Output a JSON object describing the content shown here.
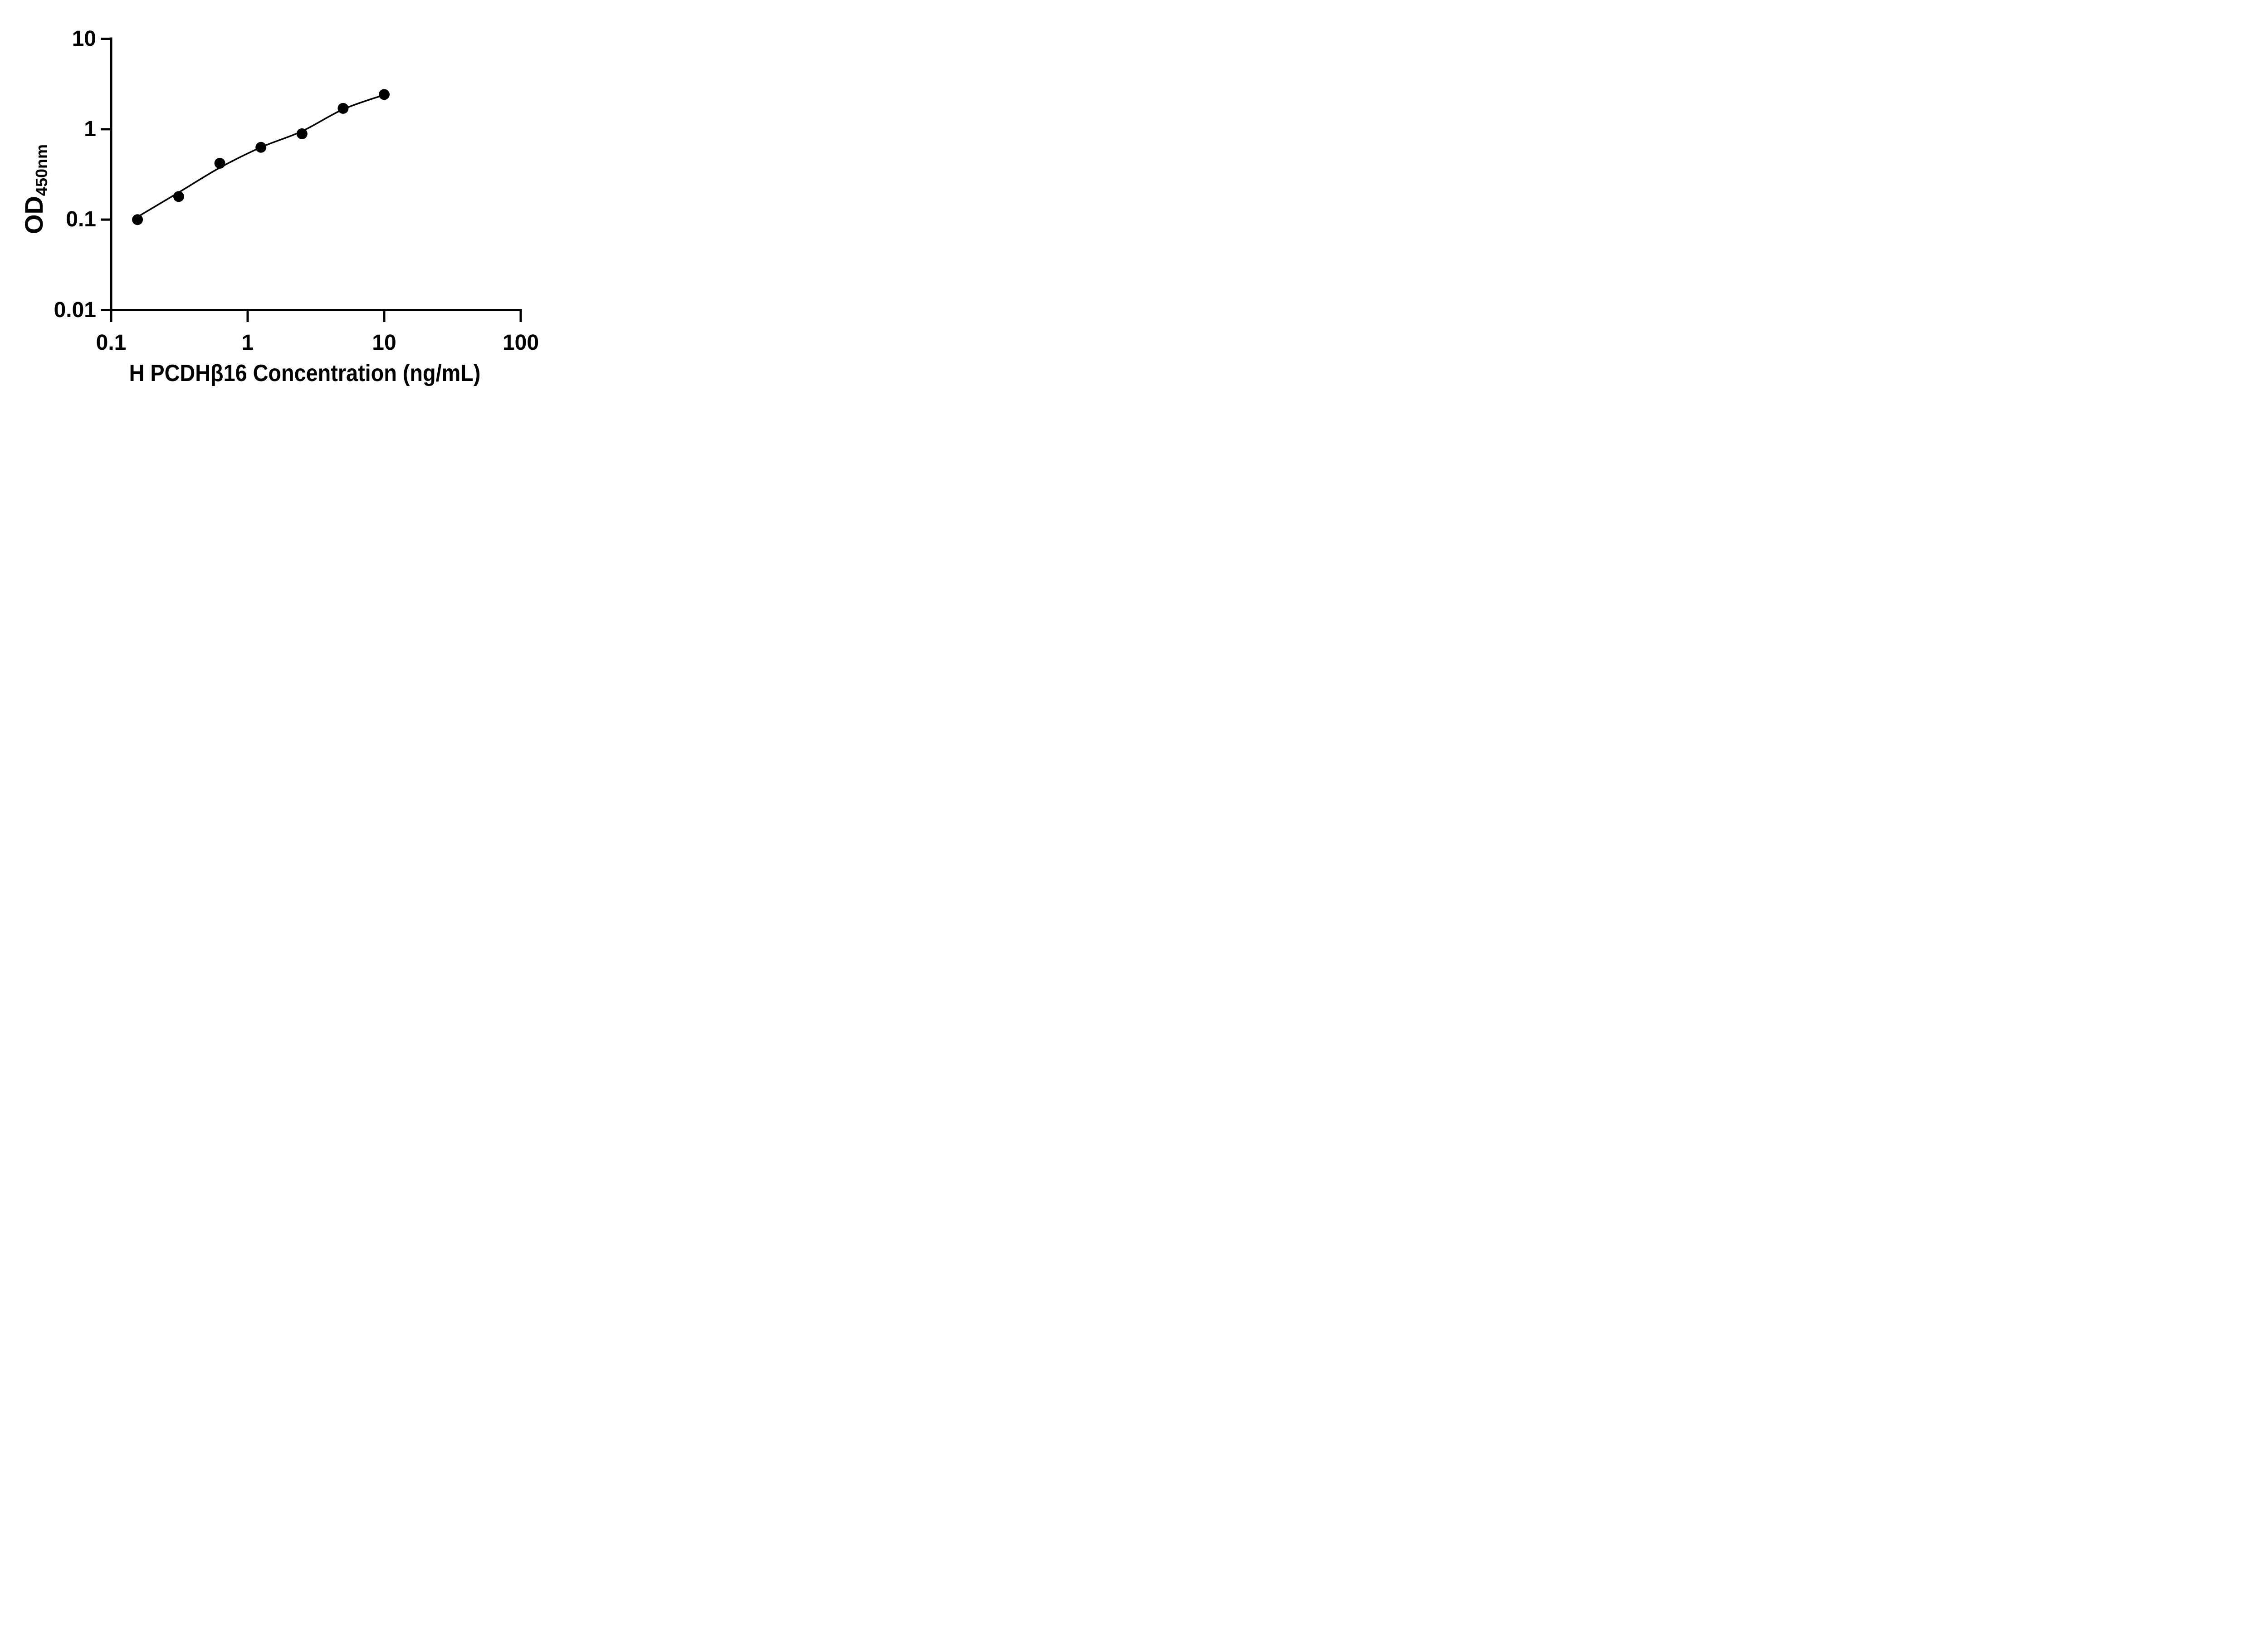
{
  "figure": {
    "background": "#ffffff",
    "ink_color": "#000000"
  },
  "chart_data": {
    "type": "scatter",
    "title": "",
    "xlabel": "H PCDHβ16 Concentration (ng/mL)",
    "ylabel_main": "OD",
    "ylabel_sub": "450nm",
    "x_scale": "log",
    "y_scale": "log",
    "xlim": [
      0.1,
      100
    ],
    "ylim": [
      0.01,
      10
    ],
    "grid": false,
    "legend": "none",
    "x_ticks": [
      {
        "value": 0.1,
        "label": "0.1"
      },
      {
        "value": 1,
        "label": "1"
      },
      {
        "value": 10,
        "label": "10"
      },
      {
        "value": 100,
        "label": "100"
      }
    ],
    "y_ticks": [
      {
        "value": 10,
        "label": "10"
      },
      {
        "value": 1,
        "label": "1"
      },
      {
        "value": 0.1,
        "label": "0.1"
      },
      {
        "value": 0.01,
        "label": "0.01"
      }
    ],
    "series": [
      {
        "name": "standard-curve-points",
        "marker": "filled-circle",
        "color": "#000000",
        "points": [
          {
            "x": 0.156,
            "y": 0.1
          },
          {
            "x": 0.3125,
            "y": 0.18
          },
          {
            "x": 0.625,
            "y": 0.42
          },
          {
            "x": 1.25,
            "y": 0.63
          },
          {
            "x": 2.5,
            "y": 0.89
          },
          {
            "x": 5,
            "y": 1.7
          },
          {
            "x": 10,
            "y": 2.42
          }
        ]
      }
    ],
    "fit_curve": [
      {
        "x": 0.156,
        "y": 0.107
      },
      {
        "x": 0.3125,
        "y": 0.2
      },
      {
        "x": 0.625,
        "y": 0.375
      },
      {
        "x": 1.25,
        "y": 0.63
      },
      {
        "x": 2.5,
        "y": 0.95
      },
      {
        "x": 5,
        "y": 1.66
      },
      {
        "x": 10,
        "y": 2.4
      }
    ]
  }
}
